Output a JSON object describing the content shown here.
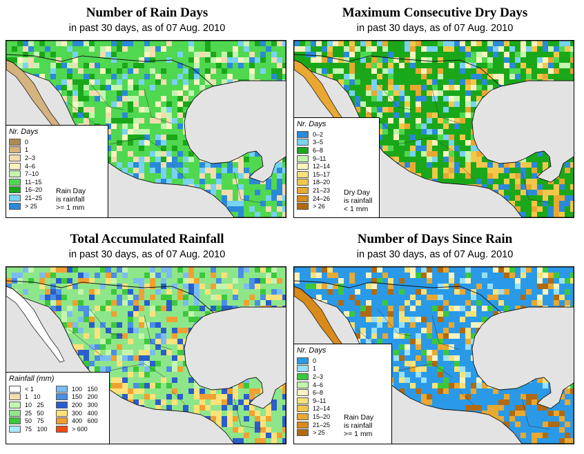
{
  "panels": [
    {
      "id": "rain-days",
      "title": "Number of Rain Days",
      "subtitle": "in past 30 days, as of  07 Aug. 2010",
      "legend_title": "Nr. Days",
      "legend": [
        {
          "label": "0",
          "color": "#b08a52"
        },
        {
          "label": "1",
          "color": "#d4b37e"
        },
        {
          "label": "2–3",
          "color": "#f2dcb0"
        },
        {
          "label": "4–6",
          "color": "#fbf3c0"
        },
        {
          "label": "7–10",
          "color": "#c3f5b0"
        },
        {
          "label": "11–15",
          "color": "#50d850"
        },
        {
          "label": "16–20",
          "color": "#1aa81a"
        },
        {
          "label": "21–25",
          "color": "#78d2f2"
        },
        {
          "label": "> 25",
          "color": "#2a8ad8"
        }
      ],
      "note": [
        "Rain Day",
        "is rainfall",
        ">= 1 mm"
      ]
    },
    {
      "id": "dry-days",
      "title": "Maximum Consecutive Dry Days",
      "subtitle": "in past 30 days, as of  07 Aug. 2010",
      "legend_title": "Nr. Days",
      "legend": [
        {
          "label": "0–2",
          "color": "#2a8ad8"
        },
        {
          "label": "3–5",
          "color": "#78d2f2"
        },
        {
          "label": "6–8",
          "color": "#1aa81a"
        },
        {
          "label": "9–11",
          "color": "#c3f5b0"
        },
        {
          "label": "12–14",
          "color": "#fbf3c0"
        },
        {
          "label": "15–17",
          "color": "#f5e27a"
        },
        {
          "label": "18–20",
          "color": "#f2c84a"
        },
        {
          "label": "21–23",
          "color": "#e8a832"
        },
        {
          "label": "24–26",
          "color": "#d88a1a"
        },
        {
          "label": "> 26",
          "color": "#b06a12"
        }
      ],
      "note": [
        "Dry Day",
        "is rainfall",
        "< 1 mm"
      ]
    },
    {
      "id": "total-rainfall",
      "title": "Total Accumulated Rainfall",
      "subtitle": "in past 30 days, as of  07 Aug. 2010",
      "legend_title": "Rainfall (mm)",
      "legend": [
        {
          "label": "< 1",
          "color": "#ffffff"
        },
        {
          "label": "1   10",
          "color": "#f2dcb0"
        },
        {
          "label": "10   25",
          "color": "#c3f5b0"
        },
        {
          "label": "25   50",
          "color": "#8ee68a"
        },
        {
          "label": "50   75",
          "color": "#3cc83c"
        },
        {
          "label": "75   100",
          "color": "#a8ecf8"
        },
        {
          "label": "100   150",
          "color": "#7abcf2"
        },
        {
          "label": "150   200",
          "color": "#4a8ee6"
        },
        {
          "label": "200   300",
          "color": "#2a5ecc"
        },
        {
          "label": "300   400",
          "color": "#fbe27a"
        },
        {
          "label": "400   600",
          "color": "#f0a030"
        },
        {
          "label": "> 600",
          "color": "#f04a14"
        }
      ],
      "note": []
    },
    {
      "id": "days-since-rain",
      "title": "Number of Days Since Rain",
      "subtitle": "in past 30 days, as of  07 Aug. 2010",
      "legend_title": "Nr. Days",
      "legend": [
        {
          "label": "0",
          "color": "#2a9ae8"
        },
        {
          "label": "1",
          "color": "#9ae0f8"
        },
        {
          "label": "2–3",
          "color": "#3cc83c"
        },
        {
          "label": "4–6",
          "color": "#c3f5b0"
        },
        {
          "label": "6–8",
          "color": "#fbf3c0"
        },
        {
          "label": "9–11",
          "color": "#f5e27a"
        },
        {
          "label": "12–14",
          "color": "#f2c84a"
        },
        {
          "label": "15–20",
          "color": "#e8a832"
        },
        {
          "label": "21–25",
          "color": "#d88a1a"
        },
        {
          "label": "> 25",
          "color": "#b06a12"
        }
      ],
      "note": [
        "Rain Day",
        "is rainfall",
        ">= 1 mm"
      ]
    }
  ]
}
